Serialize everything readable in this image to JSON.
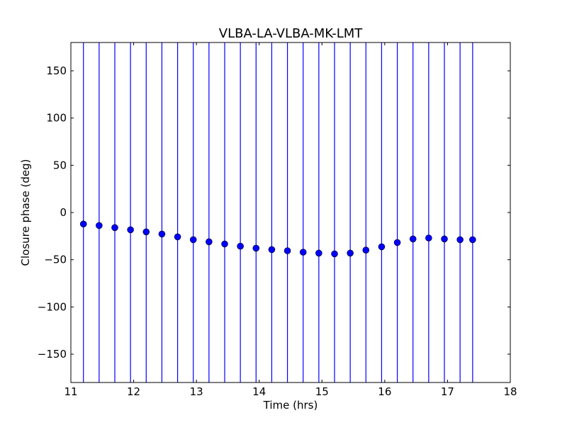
{
  "chart_data": {
    "type": "scatter",
    "title": "VLBA-LA-VLBA-MK-LMT",
    "xlabel": "Time (hrs)",
    "ylabel": "Closure phase (deg)",
    "xlim": [
      11,
      18
    ],
    "ylim": [
      -180,
      180
    ],
    "xticks": [
      11,
      12,
      13,
      14,
      15,
      16,
      17,
      18
    ],
    "yticks": [
      -150,
      -100,
      -50,
      0,
      50,
      100,
      150
    ],
    "ytick_labels": [
      "−150",
      "−100",
      "−50",
      "0",
      "50",
      "100",
      "150"
    ],
    "xtick_labels": [
      "11",
      "12",
      "13",
      "14",
      "15",
      "16",
      "17",
      "18"
    ],
    "grid": false,
    "series": [
      {
        "name": "closure phase",
        "color": "#0000ff",
        "x": [
          11.2,
          11.45,
          11.7,
          11.95,
          12.2,
          12.45,
          12.7,
          12.95,
          13.2,
          13.45,
          13.7,
          13.95,
          14.2,
          14.45,
          14.7,
          14.95,
          15.2,
          15.45,
          15.7,
          15.95,
          16.2,
          16.45,
          16.7,
          16.95,
          17.2,
          17.4
        ],
        "y": [
          -12.2,
          -13.8,
          -16,
          -18.3,
          -20.5,
          -22.8,
          -25.8,
          -28.8,
          -31,
          -33.3,
          -35.7,
          -37.8,
          -39.3,
          -40.5,
          -42,
          -43,
          -43.8,
          -43,
          -39.8,
          -36.3,
          -31.8,
          -28,
          -27,
          -28,
          -28.8,
          -28.8
        ],
        "yerr_note": "error bars extend beyond plotted range",
        "yerr": 360
      }
    ]
  }
}
